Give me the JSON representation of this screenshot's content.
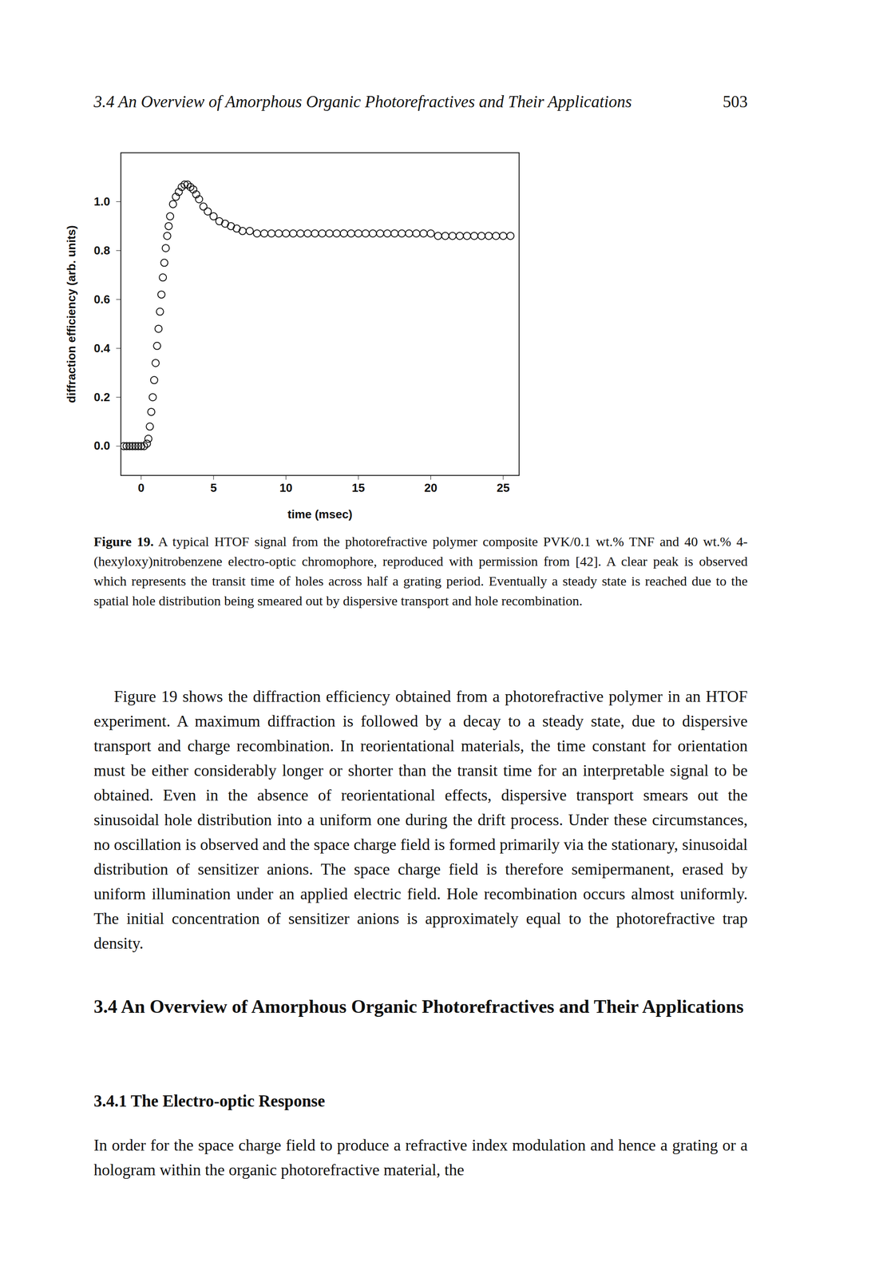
{
  "header": {
    "title": "3.4 An Overview of Amorphous Organic Photorefractives and Their Applications",
    "page": "503"
  },
  "chart_data": {
    "type": "scatter",
    "x_label": "time (msec)",
    "y_label": "diffraction efficiency (arb. units)",
    "xlim": [
      -1.4,
      26.1
    ],
    "ylim": [
      -0.12,
      1.2
    ],
    "xticks": [
      0,
      5,
      10,
      15,
      20,
      25
    ],
    "yticks": [
      {
        "value": 0,
        "label": "0.0"
      },
      0.2,
      0.4,
      0.6,
      0.8,
      {
        "value": 1,
        "label": "1.0"
      }
    ],
    "grid": false,
    "marker": "circle_open",
    "color": "#111111",
    "x": [
      -1.2,
      -1.0,
      -0.8,
      -0.6,
      -0.4,
      -0.2,
      0.0,
      0.2,
      0.4,
      0.5,
      0.6,
      0.7,
      0.8,
      0.9,
      1.0,
      1.1,
      1.2,
      1.3,
      1.4,
      1.5,
      1.6,
      1.7,
      1.8,
      1.9,
      2.0,
      2.2,
      2.4,
      2.6,
      2.8,
      3.0,
      3.2,
      3.4,
      3.6,
      3.8,
      4.0,
      4.3,
      4.6,
      5.0,
      5.4,
      5.8,
      6.2,
      6.6,
      7.0,
      7.5,
      8.0,
      8.5,
      9.0,
      9.5,
      10.0,
      10.5,
      11.0,
      11.5,
      12.0,
      12.5,
      13.0,
      13.5,
      14.0,
      14.5,
      15.0,
      15.5,
      16.0,
      16.5,
      17.0,
      17.5,
      18.0,
      18.5,
      19.0,
      19.5,
      20.0,
      20.5,
      21.0,
      21.5,
      22.0,
      22.5,
      23.0,
      23.5,
      24.0,
      24.5,
      25.0,
      25.5
    ],
    "values": [
      0.0,
      0.0,
      0.0,
      0.0,
      0.0,
      0.0,
      0.0,
      0.0,
      0.01,
      0.03,
      0.08,
      0.14,
      0.2,
      0.27,
      0.34,
      0.41,
      0.48,
      0.55,
      0.62,
      0.69,
      0.75,
      0.81,
      0.86,
      0.9,
      0.94,
      0.99,
      1.02,
      1.04,
      1.06,
      1.07,
      1.07,
      1.06,
      1.05,
      1.03,
      1.01,
      0.98,
      0.96,
      0.94,
      0.92,
      0.91,
      0.9,
      0.89,
      0.88,
      0.88,
      0.87,
      0.87,
      0.87,
      0.87,
      0.87,
      0.87,
      0.87,
      0.87,
      0.87,
      0.87,
      0.87,
      0.87,
      0.87,
      0.87,
      0.87,
      0.87,
      0.87,
      0.87,
      0.87,
      0.87,
      0.87,
      0.87,
      0.87,
      0.87,
      0.87,
      0.86,
      0.86,
      0.86,
      0.86,
      0.86,
      0.86,
      0.86,
      0.86,
      0.86,
      0.86,
      0.86
    ]
  },
  "caption": {
    "label": "Figure 19.",
    "text": "A typical HTOF signal from the photorefractive polymer composite PVK/0.1 wt.% TNF and 40 wt.% 4-(hexyloxy)nitrobenzene electro-optic chromophore, reproduced with permission from [42]. A clear peak is observed which represents the transit time of holes across half a grating period. Eventually a steady state is reached due to the spatial hole distribution being smeared out by dispersive transport and hole recombination."
  },
  "paragraphs": [
    "Figure 19 shows the diffraction efficiency obtained from a photorefractive polymer in an HTOF experiment. A maximum diffraction is followed by a decay to a steady state, due to dispersive transport and charge recombination. In reorientational materials, the time constant for orientation must be either considerably longer or shorter than the transit time for an interpretable signal to be obtained. Even in the absence of reorientational effects, dispersive transport smears out the sinusoidal hole distribution into a uniform one during the drift process. Under these circumstances, no oscillation is observed and the space charge field is formed primarily via the stationary, sinusoidal distribution of sensitizer anions. The space charge field is therefore semipermanent, erased by uniform illumination under an applied electric field. Hole recombination occurs almost uniformly. The initial concentration of sensitizer anions is approximately equal to the photorefractive trap density.",
    "In order for the space charge field to produce a refractive index modulation and hence a grating or a hologram within the organic photorefractive material, the"
  ],
  "sections": [
    "3.4 An Overview of Amorphous Organic Photorefractives and Their Applications",
    "3.4.1 The Electro-optic Response"
  ]
}
